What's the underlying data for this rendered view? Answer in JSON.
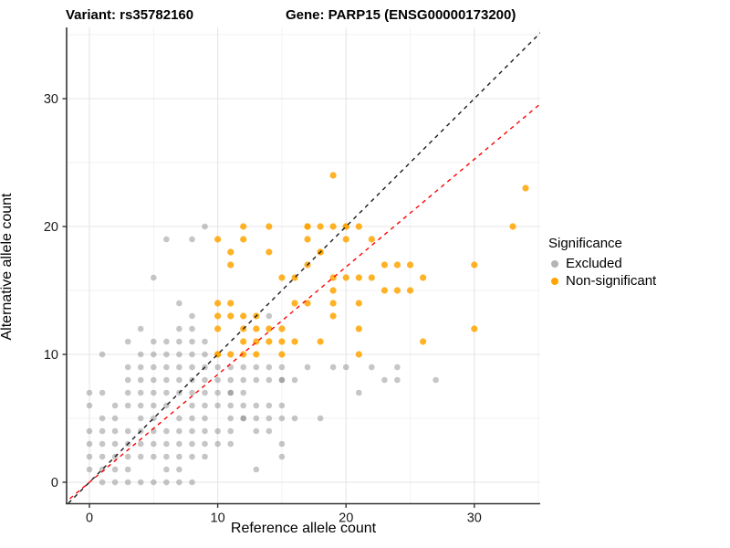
{
  "titles": {
    "variant": "Variant: rs35782160",
    "gene": "Gene: PARP15 (ENSG00000173200)"
  },
  "axes": {
    "x_label": "Reference allele count",
    "y_label": "Alternative allele count",
    "x_ticks": [
      0,
      10,
      20,
      30
    ],
    "y_ticks": [
      0,
      10,
      20,
      30
    ],
    "x_minor": [
      5,
      15,
      25,
      35
    ],
    "y_minor": [
      5,
      15,
      25,
      35
    ]
  },
  "legend": {
    "title": "Significance",
    "items": [
      {
        "label": "Excluded",
        "color": "#b4b4b4"
      },
      {
        "label": "Non-significant",
        "color": "#ffa500"
      }
    ]
  },
  "colors": {
    "excluded": "#808080",
    "non_significant": "#ffa500",
    "identity_line": "#1a1a1a",
    "fit_line": "#ff0000",
    "grid_major": "#e5e5e5",
    "grid_minor": "#f2f2f2",
    "axis": "#333333",
    "text": "#1a1a1a"
  },
  "chart_data": {
    "type": "scatter",
    "title": "Variant: rs35782160 — Gene: PARP15 (ENSG00000173200)",
    "xlabel": "Reference allele count",
    "ylabel": "Alternative allele count",
    "xlim": [
      -1.78,
      35.13
    ],
    "ylim": [
      -1.68,
      35.57
    ],
    "grid": true,
    "legend_position": "right",
    "note": "points are [x, y, overplot_count(optional)]",
    "series": [
      {
        "name": "Excluded",
        "color": "#808080",
        "opacity": 0.45,
        "radius": 3.3,
        "points": [
          [
            1,
            0
          ],
          [
            2,
            0
          ],
          [
            3,
            0
          ],
          [
            4,
            0
          ],
          [
            5,
            0
          ],
          [
            6,
            0
          ],
          [
            7,
            0
          ],
          [
            8,
            0
          ],
          [
            0,
            1
          ],
          [
            1,
            1
          ],
          [
            2,
            1
          ],
          [
            3,
            1
          ],
          [
            6,
            1
          ],
          [
            7,
            1
          ],
          [
            13,
            1
          ],
          [
            0,
            2
          ],
          [
            1,
            2
          ],
          [
            2,
            2
          ],
          [
            3,
            2
          ],
          [
            4,
            2
          ],
          [
            5,
            2
          ],
          [
            6,
            2
          ],
          [
            7,
            2
          ],
          [
            8,
            2
          ],
          [
            9,
            2
          ],
          [
            15,
            2
          ],
          [
            0,
            3
          ],
          [
            1,
            3
          ],
          [
            2,
            3
          ],
          [
            3,
            3
          ],
          [
            4,
            3
          ],
          [
            5,
            3
          ],
          [
            6,
            3
          ],
          [
            7,
            3
          ],
          [
            8,
            3
          ],
          [
            9,
            3
          ],
          [
            10,
            3
          ],
          [
            11,
            3
          ],
          [
            15,
            3
          ],
          [
            0,
            4
          ],
          [
            1,
            4
          ],
          [
            2,
            4
          ],
          [
            3,
            4
          ],
          [
            4,
            4
          ],
          [
            5,
            4
          ],
          [
            6,
            4
          ],
          [
            7,
            4
          ],
          [
            8,
            4
          ],
          [
            9,
            4
          ],
          [
            10,
            4
          ],
          [
            11,
            4
          ],
          [
            13,
            4
          ],
          [
            14,
            4
          ],
          [
            1,
            5
          ],
          [
            2,
            5
          ],
          [
            4,
            5
          ],
          [
            5,
            5
          ],
          [
            7,
            5
          ],
          [
            8,
            5
          ],
          [
            9,
            5
          ],
          [
            11,
            5
          ],
          [
            12,
            5,
            2
          ],
          [
            13,
            5
          ],
          [
            14,
            5
          ],
          [
            15,
            5
          ],
          [
            16,
            5
          ],
          [
            18,
            5
          ],
          [
            0,
            6
          ],
          [
            2,
            6
          ],
          [
            3,
            6
          ],
          [
            4,
            6
          ],
          [
            5,
            6
          ],
          [
            6,
            6
          ],
          [
            8,
            6
          ],
          [
            9,
            6
          ],
          [
            10,
            6
          ],
          [
            11,
            6
          ],
          [
            12,
            6
          ],
          [
            13,
            6
          ],
          [
            14,
            6
          ],
          [
            15,
            6
          ],
          [
            0,
            7
          ],
          [
            1,
            7
          ],
          [
            3,
            7
          ],
          [
            4,
            7
          ],
          [
            5,
            7
          ],
          [
            6,
            7
          ],
          [
            7,
            7
          ],
          [
            8,
            7
          ],
          [
            9,
            7
          ],
          [
            10,
            7
          ],
          [
            11,
            7,
            2
          ],
          [
            12,
            7
          ],
          [
            21,
            7
          ],
          [
            3,
            8
          ],
          [
            4,
            8
          ],
          [
            5,
            8
          ],
          [
            6,
            8
          ],
          [
            7,
            8
          ],
          [
            8,
            8
          ],
          [
            9,
            8
          ],
          [
            10,
            8
          ],
          [
            11,
            8
          ],
          [
            12,
            8
          ],
          [
            13,
            8
          ],
          [
            14,
            8
          ],
          [
            15,
            8,
            2
          ],
          [
            16,
            8
          ],
          [
            23,
            8
          ],
          [
            24,
            8
          ],
          [
            27,
            8
          ],
          [
            3,
            9
          ],
          [
            4,
            9
          ],
          [
            5,
            9
          ],
          [
            6,
            9
          ],
          [
            7,
            9
          ],
          [
            8,
            9
          ],
          [
            9,
            9
          ],
          [
            10,
            9
          ],
          [
            11,
            9
          ],
          [
            12,
            9
          ],
          [
            13,
            9
          ],
          [
            14,
            9
          ],
          [
            15,
            9
          ],
          [
            17,
            9
          ],
          [
            19,
            9
          ],
          [
            20,
            9
          ],
          [
            22,
            9
          ],
          [
            24,
            9
          ],
          [
            1,
            10
          ],
          [
            4,
            10
          ],
          [
            5,
            10
          ],
          [
            6,
            10
          ],
          [
            7,
            10
          ],
          [
            8,
            10
          ],
          [
            9,
            10
          ],
          [
            3,
            11
          ],
          [
            5,
            11
          ],
          [
            6,
            11
          ],
          [
            7,
            11
          ],
          [
            8,
            11
          ],
          [
            9,
            11
          ],
          [
            4,
            12
          ],
          [
            7,
            12
          ],
          [
            8,
            12
          ],
          [
            8,
            13
          ],
          [
            14,
            13
          ],
          [
            7,
            14
          ],
          [
            5,
            16
          ],
          [
            6,
            19
          ],
          [
            8,
            19
          ],
          [
            9,
            20
          ]
        ]
      },
      {
        "name": "Non-significant",
        "color": "#ffa500",
        "opacity": 0.85,
        "radius": 3.6,
        "points": [
          [
            10,
            10,
            2
          ],
          [
            11,
            10
          ],
          [
            12,
            10
          ],
          [
            13,
            10
          ],
          [
            15,
            10
          ],
          [
            21,
            10
          ],
          [
            12,
            11
          ],
          [
            13,
            11
          ],
          [
            14,
            11
          ],
          [
            15,
            11
          ],
          [
            16,
            11
          ],
          [
            18,
            11
          ],
          [
            26,
            11
          ],
          [
            10,
            12
          ],
          [
            12,
            12
          ],
          [
            13,
            12
          ],
          [
            14,
            12
          ],
          [
            15,
            12
          ],
          [
            21,
            12
          ],
          [
            30,
            12
          ],
          [
            10,
            13
          ],
          [
            11,
            13
          ],
          [
            12,
            13
          ],
          [
            13,
            13
          ],
          [
            19,
            13
          ],
          [
            10,
            14
          ],
          [
            11,
            14
          ],
          [
            16,
            14
          ],
          [
            17,
            14
          ],
          [
            19,
            14
          ],
          [
            21,
            14
          ],
          [
            19,
            15
          ],
          [
            23,
            15
          ],
          [
            24,
            15
          ],
          [
            25,
            15
          ],
          [
            15,
            16
          ],
          [
            16,
            16
          ],
          [
            19,
            16
          ],
          [
            20,
            16
          ],
          [
            21,
            16
          ],
          [
            22,
            16
          ],
          [
            26,
            16
          ],
          [
            11,
            17
          ],
          [
            17,
            17
          ],
          [
            23,
            17
          ],
          [
            24,
            17
          ],
          [
            25,
            17
          ],
          [
            30,
            17
          ],
          [
            11,
            18
          ],
          [
            14,
            18
          ],
          [
            18,
            18,
            2
          ],
          [
            10,
            19
          ],
          [
            12,
            19
          ],
          [
            17,
            19
          ],
          [
            20,
            19
          ],
          [
            22,
            19
          ],
          [
            12,
            20
          ],
          [
            14,
            20
          ],
          [
            17,
            20,
            2
          ],
          [
            18,
            20
          ],
          [
            19,
            20
          ],
          [
            20,
            20,
            2
          ],
          [
            21,
            20
          ],
          [
            33,
            20
          ],
          [
            34,
            23
          ],
          [
            19,
            24
          ]
        ]
      }
    ],
    "lines": [
      {
        "name": "identity",
        "slope": 1.0,
        "intercept": 0,
        "color": "#1a1a1a",
        "dashed": true
      },
      {
        "name": "reference-bias-fit",
        "slope": 0.842,
        "intercept": 0,
        "color": "#ff0000",
        "dashed": true
      }
    ]
  }
}
